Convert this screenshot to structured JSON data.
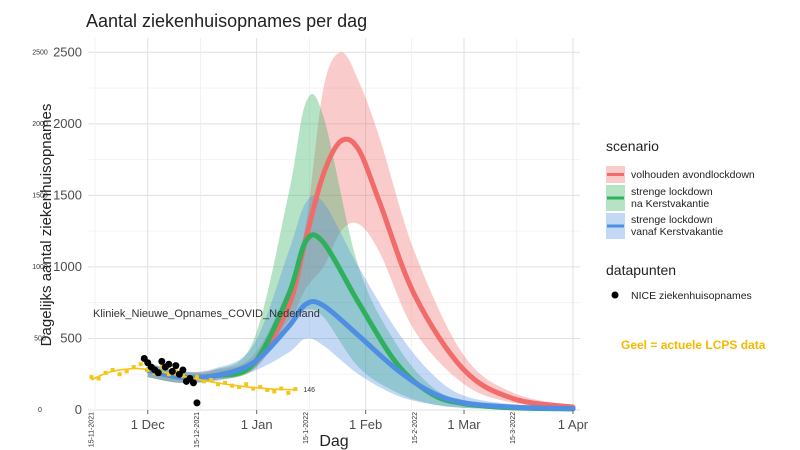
{
  "chart_data": {
    "type": "area",
    "title": "Aantal ziekenhuisopnames per dag",
    "xlabel": "Dag",
    "ylabel": "Dagelijks aantal ziekenhuisopnames",
    "x_ticks": [
      "1 Dec",
      "1 Jan",
      "1 Feb",
      "1 Mar",
      "1 Apr"
    ],
    "y_ticks": [
      "0",
      "500",
      "1000",
      "1500",
      "2000",
      "2500"
    ],
    "ylim": [
      0,
      2600
    ],
    "xlim": [
      "2021-11-14",
      "2022-04-03"
    ],
    "grid": true,
    "legend": {
      "position": "right",
      "scenario_title": "scenario",
      "scenario_items": [
        {
          "label_lines": [
            "volhouden avondlockdown"
          ],
          "color": "#f26b6b"
        },
        {
          "label_lines": [
            "strenge lockdown",
            " na Kerstvakantie"
          ],
          "color": "#2fb05c"
        },
        {
          "label_lines": [
            "strenge lockdown",
            " vanaf Kerstvakantie"
          ],
          "color": "#4f8fe3"
        }
      ],
      "datapunten_title": "datapunten",
      "datapunten_items": [
        {
          "label": "NICE ziekenhuisopnames",
          "color": "#000000"
        }
      ]
    },
    "series": [
      {
        "name": "volhouden avondlockdown",
        "color": "#f26b6b",
        "x": [
          "2021-12-01",
          "2021-12-10",
          "2021-12-20",
          "2021-12-31",
          "2022-01-10",
          "2022-01-15",
          "2022-01-20",
          "2022-01-25",
          "2022-01-30",
          "2022-02-05",
          "2022-02-15",
          "2022-03-01",
          "2022-03-15",
          "2022-04-01"
        ],
        "y": [
          280,
          230,
          240,
          320,
          720,
          1200,
          1650,
          1880,
          1820,
          1450,
          800,
          280,
          80,
          20
        ],
        "low": [
          230,
          190,
          210,
          280,
          600,
          850,
          1000,
          1250,
          1300,
          1100,
          550,
          180,
          50,
          10
        ],
        "high": [
          330,
          270,
          280,
          380,
          850,
          1300,
          2250,
          2500,
          2300,
          1900,
          1100,
          380,
          120,
          30
        ]
      },
      {
        "name": "strenge lockdown na Kerstvakantie",
        "color": "#2fb05c",
        "x": [
          "2021-12-01",
          "2021-12-10",
          "2021-12-20",
          "2021-12-31",
          "2022-01-10",
          "2022-01-15",
          "2022-01-20",
          "2022-01-30",
          "2022-02-10",
          "2022-02-20",
          "2022-03-01",
          "2022-03-15",
          "2022-04-01"
        ],
        "y": [
          280,
          230,
          240,
          320,
          800,
          1180,
          1170,
          750,
          320,
          110,
          45,
          15,
          8
        ],
        "low": [
          230,
          190,
          210,
          280,
          620,
          700,
          650,
          300,
          120,
          40,
          15,
          5,
          2
        ],
        "high": [
          330,
          270,
          280,
          480,
          1500,
          2150,
          2050,
          1000,
          450,
          160,
          70,
          25,
          12
        ]
      },
      {
        "name": "strenge lockdown vanaf Kerstvakantie",
        "color": "#4f8fe3",
        "x": [
          "2021-12-01",
          "2021-12-10",
          "2021-12-20",
          "2021-12-31",
          "2022-01-10",
          "2022-01-15",
          "2022-01-20",
          "2022-01-30",
          "2022-02-10",
          "2022-02-20",
          "2022-03-01",
          "2022-03-15",
          "2022-04-01"
        ],
        "y": [
          280,
          230,
          240,
          330,
          580,
          740,
          730,
          520,
          280,
          120,
          50,
          20,
          10
        ],
        "low": [
          230,
          190,
          200,
          270,
          400,
          500,
          450,
          250,
          100,
          40,
          15,
          5,
          2
        ],
        "high": [
          330,
          270,
          290,
          450,
          1100,
          1450,
          1450,
          1000,
          550,
          250,
          100,
          40,
          18
        ]
      }
    ],
    "nice_points": {
      "name": "NICE ziekenhuisopnames",
      "x": [
        "2021-11-30",
        "2021-12-01",
        "2021-12-02",
        "2021-12-03",
        "2021-12-04",
        "2021-12-05",
        "2021-12-06",
        "2021-12-07",
        "2021-12-08",
        "2021-12-09",
        "2021-12-10",
        "2021-12-11",
        "2021-12-12",
        "2021-12-13",
        "2021-12-14",
        "2021-12-15"
      ],
      "y": [
        360,
        330,
        300,
        280,
        260,
        340,
        300,
        320,
        270,
        310,
        250,
        280,
        200,
        220,
        190,
        50
      ]
    },
    "lcps_overlay": {
      "name": "Kliniek_Nieuwe_Opnames_COVID_Nederland",
      "color": "#f5c518",
      "note": "Geel = actuele LCPS data",
      "end_label": "146",
      "y_ticks": [
        "0",
        "500",
        "1000",
        "1500",
        "2000",
        "2500"
      ],
      "x_ticks": [
        "15-11-2021",
        "15-12-2021",
        "15-1-2022",
        "15-2-2022",
        "15-3-2022"
      ],
      "x": [
        "2021-11-15",
        "2021-11-17",
        "2021-11-19",
        "2021-11-21",
        "2021-11-23",
        "2021-11-25",
        "2021-11-27",
        "2021-11-29",
        "2021-12-01",
        "2021-12-03",
        "2021-12-05",
        "2021-12-07",
        "2021-12-09",
        "2021-12-11",
        "2021-12-13",
        "2021-12-15",
        "2021-12-17",
        "2021-12-19",
        "2021-12-21",
        "2021-12-23",
        "2021-12-25",
        "2021-12-27",
        "2021-12-29",
        "2021-12-31",
        "2022-01-02",
        "2022-01-04",
        "2022-01-06",
        "2022-01-08",
        "2022-01-10",
        "2022-01-12"
      ],
      "y": [
        230,
        220,
        260,
        280,
        250,
        270,
        300,
        320,
        280,
        260,
        300,
        250,
        270,
        240,
        220,
        230,
        200,
        210,
        180,
        190,
        170,
        160,
        180,
        150,
        160,
        140,
        130,
        150,
        120,
        146
      ],
      "trend": [
        210,
        235,
        255,
        270,
        280,
        285,
        290,
        288,
        283,
        276,
        266,
        256,
        246,
        236,
        226,
        216,
        206,
        197,
        189,
        181,
        174,
        168,
        162,
        157,
        153,
        149,
        146,
        144,
        143,
        142
      ]
    }
  }
}
